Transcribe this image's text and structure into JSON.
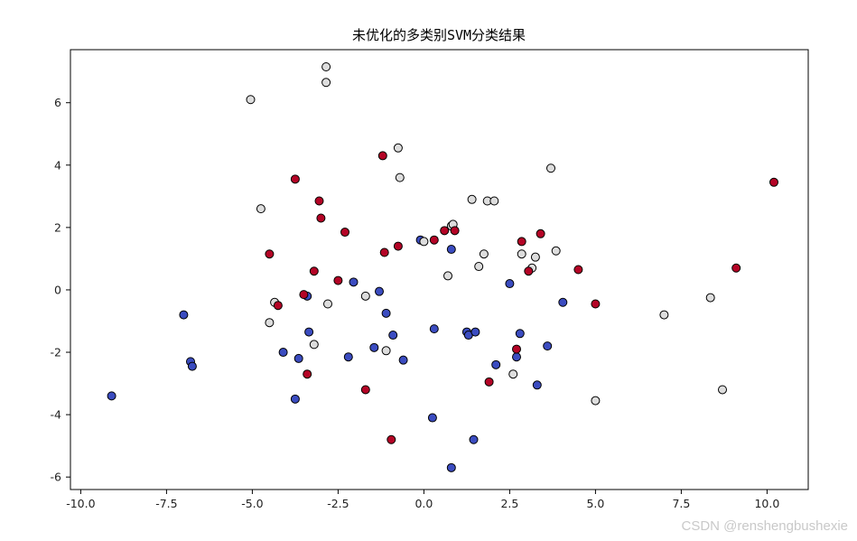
{
  "chart_data": {
    "type": "scatter",
    "title": "未优化的多类别SVM分类结果",
    "xlabel": "",
    "ylabel": "",
    "xlim": [
      -10.3,
      11.2
    ],
    "ylim": [
      -6.4,
      7.7
    ],
    "xticks": [
      -10.0,
      -7.5,
      -5.0,
      -2.5,
      0.0,
      2.5,
      5.0,
      7.5,
      10.0
    ],
    "xtick_labels": [
      "-10.0",
      "-7.5",
      "-5.0",
      "-2.5",
      "0.0",
      "2.5",
      "5.0",
      "7.5",
      "10.0"
    ],
    "yticks": [
      -6,
      -4,
      -2,
      0,
      2,
      4,
      6
    ],
    "ytick_labels": [
      "-6",
      "-4",
      "-2",
      "0",
      "2",
      "4",
      "6"
    ],
    "grid": false,
    "colors": {
      "class_0": "#3b4cc0",
      "class_1": "#dddddd",
      "class_2": "#b40426"
    },
    "series": [
      {
        "class": "class_0",
        "points": [
          [
            -9.1,
            -3.4
          ],
          [
            -7.0,
            -0.8
          ],
          [
            -6.8,
            -2.3
          ],
          [
            -6.75,
            -2.45
          ],
          [
            -4.1,
            -2.0
          ],
          [
            -3.65,
            -2.2
          ],
          [
            -3.75,
            -3.5
          ],
          [
            -3.35,
            -1.35
          ],
          [
            -3.4,
            -0.2
          ],
          [
            -2.2,
            -2.15
          ],
          [
            -2.05,
            0.25
          ],
          [
            -1.45,
            -1.85
          ],
          [
            -1.3,
            -0.05
          ],
          [
            -1.1,
            -0.75
          ],
          [
            -0.9,
            -1.45
          ],
          [
            -0.6,
            -2.25
          ],
          [
            -0.1,
            1.6
          ],
          [
            0.3,
            -1.25
          ],
          [
            0.25,
            -4.1
          ],
          [
            0.8,
            1.3
          ],
          [
            1.25,
            -1.35
          ],
          [
            1.3,
            -1.45
          ],
          [
            1.5,
            -1.35
          ],
          [
            0.8,
            -5.7
          ],
          [
            1.45,
            -4.8
          ],
          [
            2.1,
            -2.4
          ],
          [
            2.5,
            0.2
          ],
          [
            2.7,
            -2.15
          ],
          [
            2.8,
            -1.4
          ],
          [
            3.3,
            -3.05
          ],
          [
            3.6,
            -1.8
          ],
          [
            4.05,
            -0.4
          ]
        ]
      },
      {
        "class": "class_1",
        "points": [
          [
            -5.05,
            6.1
          ],
          [
            -4.75,
            2.6
          ],
          [
            -4.5,
            -1.05
          ],
          [
            -4.35,
            -0.4
          ],
          [
            -3.2,
            -1.75
          ],
          [
            -2.85,
            6.65
          ],
          [
            -2.85,
            7.15
          ],
          [
            -2.8,
            -0.45
          ],
          [
            -1.7,
            -0.2
          ],
          [
            -1.1,
            -1.95
          ],
          [
            -0.75,
            4.55
          ],
          [
            -0.7,
            3.6
          ],
          [
            0.0,
            1.55
          ],
          [
            0.7,
            0.45
          ],
          [
            0.8,
            2.05
          ],
          [
            0.85,
            2.1
          ],
          [
            1.4,
            2.9
          ],
          [
            1.6,
            0.75
          ],
          [
            1.75,
            1.15
          ],
          [
            1.85,
            2.85
          ],
          [
            2.05,
            2.85
          ],
          [
            2.6,
            -2.7
          ],
          [
            2.85,
            1.15
          ],
          [
            3.15,
            0.7
          ],
          [
            3.25,
            1.05
          ],
          [
            3.7,
            3.9
          ],
          [
            3.85,
            1.25
          ],
          [
            5.0,
            -3.55
          ],
          [
            7.0,
            -0.8
          ],
          [
            8.35,
            -0.25
          ],
          [
            8.7,
            -3.2
          ]
        ]
      },
      {
        "class": "class_2",
        "points": [
          [
            -4.5,
            1.15
          ],
          [
            -4.25,
            -0.5
          ],
          [
            -3.75,
            3.55
          ],
          [
            -3.5,
            -0.15
          ],
          [
            -3.2,
            0.6
          ],
          [
            -3.05,
            2.85
          ],
          [
            -3.0,
            2.3
          ],
          [
            -3.4,
            -2.7
          ],
          [
            -2.5,
            0.3
          ],
          [
            -2.3,
            1.85
          ],
          [
            -1.7,
            -3.2
          ],
          [
            -1.2,
            4.3
          ],
          [
            -1.15,
            1.2
          ],
          [
            -0.95,
            -4.8
          ],
          [
            -0.75,
            1.4
          ],
          [
            0.3,
            1.6
          ],
          [
            0.6,
            1.9
          ],
          [
            0.9,
            1.9
          ],
          [
            1.9,
            -2.95
          ],
          [
            2.7,
            -1.9
          ],
          [
            2.85,
            1.55
          ],
          [
            3.05,
            0.6
          ],
          [
            3.4,
            1.8
          ],
          [
            4.5,
            0.65
          ],
          [
            5.0,
            -0.45
          ],
          [
            9.1,
            0.7
          ],
          [
            10.2,
            3.45
          ]
        ]
      }
    ]
  },
  "watermark": "CSDN @renshengbushexie"
}
